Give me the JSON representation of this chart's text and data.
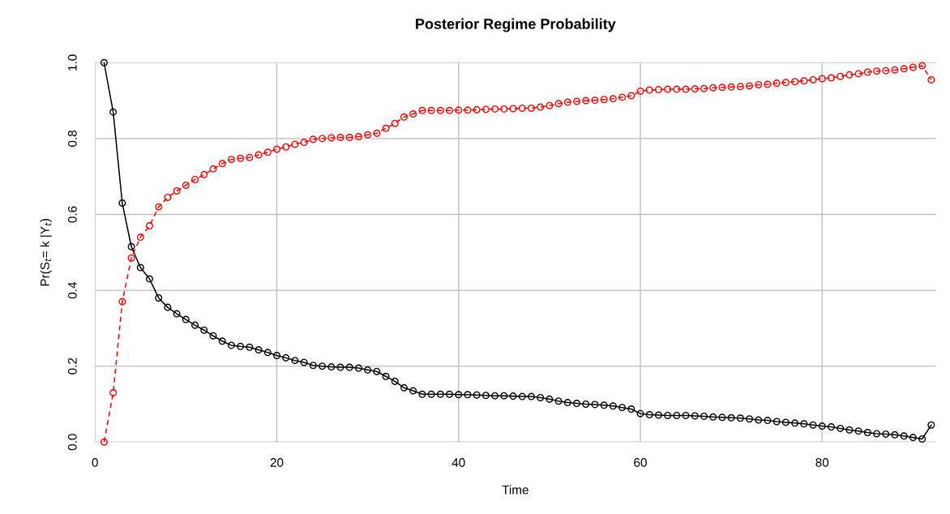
{
  "chart_data": {
    "type": "line",
    "title": "Posterior Regime Probability",
    "xlabel": "Time",
    "ylabel": "Pr(S$_{t}$= k |Y$_{t}$)",
    "x": [
      1,
      2,
      3,
      4,
      5,
      6,
      7,
      8,
      9,
      10,
      11,
      12,
      13,
      14,
      15,
      16,
      17,
      18,
      19,
      20,
      21,
      22,
      23,
      24,
      25,
      26,
      27,
      28,
      29,
      30,
      31,
      32,
      33,
      34,
      35,
      36,
      37,
      38,
      39,
      40,
      41,
      42,
      43,
      44,
      45,
      46,
      47,
      48,
      49,
      50,
      51,
      52,
      53,
      54,
      55,
      56,
      57,
      58,
      59,
      60,
      61,
      62,
      63,
      64,
      65,
      66,
      67,
      68,
      69,
      70,
      71,
      72,
      73,
      74,
      75,
      76,
      77,
      78,
      79,
      80,
      81,
      82,
      83,
      84,
      85,
      86,
      87,
      88,
      89,
      90,
      91,
      92
    ],
    "series": [
      {
        "color": "#000000",
        "line_style": "solid",
        "values": [
          1.0,
          0.87,
          0.63,
          0.515,
          0.46,
          0.43,
          0.38,
          0.355,
          0.338,
          0.323,
          0.308,
          0.295,
          0.28,
          0.266,
          0.255,
          0.252,
          0.25,
          0.243,
          0.236,
          0.228,
          0.222,
          0.215,
          0.21,
          0.202,
          0.2,
          0.198,
          0.197,
          0.197,
          0.195,
          0.19,
          0.186,
          0.173,
          0.16,
          0.143,
          0.135,
          0.126,
          0.126,
          0.126,
          0.126,
          0.125,
          0.125,
          0.124,
          0.123,
          0.122,
          0.122,
          0.121,
          0.12,
          0.12,
          0.117,
          0.113,
          0.108,
          0.104,
          0.102,
          0.1,
          0.099,
          0.097,
          0.095,
          0.091,
          0.087,
          0.075,
          0.072,
          0.071,
          0.07,
          0.07,
          0.07,
          0.069,
          0.068,
          0.066,
          0.065,
          0.064,
          0.063,
          0.061,
          0.058,
          0.057,
          0.054,
          0.052,
          0.05,
          0.048,
          0.045,
          0.042,
          0.04,
          0.036,
          0.032,
          0.029,
          0.025,
          0.022,
          0.021,
          0.019,
          0.016,
          0.012,
          0.008,
          0.045
        ]
      },
      {
        "color": "#ff0000",
        "line_style": "dashed",
        "values": [
          0.0,
          0.13,
          0.37,
          0.485,
          0.54,
          0.57,
          0.62,
          0.645,
          0.662,
          0.677,
          0.692,
          0.705,
          0.72,
          0.734,
          0.745,
          0.748,
          0.75,
          0.757,
          0.764,
          0.772,
          0.778,
          0.785,
          0.79,
          0.798,
          0.8,
          0.802,
          0.803,
          0.803,
          0.805,
          0.81,
          0.814,
          0.827,
          0.84,
          0.857,
          0.865,
          0.874,
          0.874,
          0.874,
          0.874,
          0.875,
          0.875,
          0.876,
          0.877,
          0.878,
          0.878,
          0.879,
          0.88,
          0.88,
          0.883,
          0.887,
          0.892,
          0.896,
          0.898,
          0.9,
          0.901,
          0.903,
          0.905,
          0.909,
          0.913,
          0.925,
          0.928,
          0.929,
          0.93,
          0.93,
          0.93,
          0.931,
          0.932,
          0.934,
          0.935,
          0.936,
          0.937,
          0.939,
          0.942,
          0.943,
          0.946,
          0.948,
          0.95,
          0.952,
          0.955,
          0.958,
          0.96,
          0.964,
          0.968,
          0.971,
          0.975,
          0.978,
          0.979,
          0.981,
          0.984,
          0.988,
          0.992,
          0.955
        ]
      }
    ],
    "xlim": [
      0,
      92.5
    ],
    "xticks": [
      0,
      20,
      40,
      60,
      80
    ],
    "ylim": [
      0,
      1
    ],
    "yticks": [
      {
        "value": 0,
        "label": "0.0"
      },
      {
        "value": 0.2,
        "label": "0.2"
      },
      {
        "value": 0.4,
        "label": "0.4"
      },
      {
        "value": 0.6,
        "label": "0.6"
      },
      {
        "value": 0.8,
        "label": "0.8"
      },
      {
        "value": 1,
        "label": "1.0"
      }
    ],
    "grid": true,
    "marker": "circle"
  }
}
